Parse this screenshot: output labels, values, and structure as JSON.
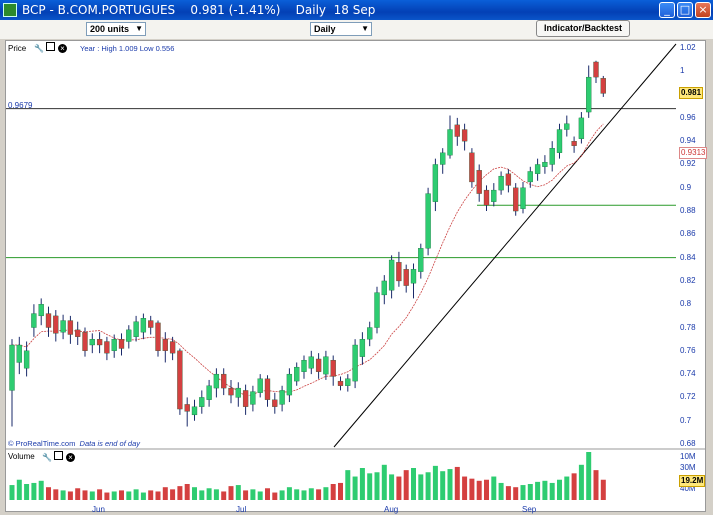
{
  "window": {
    "title": "BCP - B.COM.PORTUGUES    0.981 (-1.41%)    Daily  18 Sep",
    "minimize_glyph": "_",
    "maximize_glyph": "□",
    "close_glyph": "×"
  },
  "toolbar": {
    "units_value": "200 units",
    "period_value": "Daily",
    "indicator_button": "Indicator/Backtest"
  },
  "price_panel": {
    "label": "Price",
    "year_text": "Year : High 1.009 Low 0.556",
    "level_label": "0.9679",
    "y_ticks": [
      "1.02",
      "1",
      "0.98",
      "0.96",
      "0.94",
      "0.92",
      "0.9",
      "0.88",
      "0.86",
      "0.84",
      "0.82",
      "0.8",
      "0.78",
      "0.76",
      "0.74",
      "0.72",
      "0.7",
      "0.68"
    ],
    "last_price": "0.981",
    "ma_value": "0.9313",
    "footer_source": "© ProRealTime.com",
    "footer_note": "Data is end of day"
  },
  "volume_panel": {
    "label": "Volume",
    "y_ticks": [
      "40M",
      "30M",
      "10M"
    ],
    "last_volume": "19.2M"
  },
  "x_axis": {
    "labels": [
      "Jun",
      "Jul",
      "Aug",
      "Sep"
    ]
  },
  "icons": {
    "tools": [
      "wrench-icon",
      "window-icon",
      "close-circle-icon"
    ]
  },
  "colors": {
    "up_candle": "#2ecc71",
    "down_candle": "#d44040",
    "trendline": "#000000",
    "support_line": "#2a9a2a",
    "moving_average": "#c44",
    "axis_text": "#1a3aaa"
  },
  "chart_data": {
    "type": "candlestick",
    "horizontal_levels": [
      0.9679,
      0.885,
      0.84
    ],
    "price_range": [
      0.68,
      1.02
    ],
    "volume_ticks_M": [
      10,
      30,
      40
    ],
    "candles": [
      {
        "o": 0.726,
        "c": 0.765,
        "h": 0.77,
        "l": 0.695
      },
      {
        "o": 0.75,
        "c": 0.765,
        "h": 0.772,
        "l": 0.74
      },
      {
        "o": 0.745,
        "c": 0.76,
        "h": 0.768,
        "l": 0.738
      },
      {
        "o": 0.78,
        "c": 0.792,
        "h": 0.8,
        "l": 0.772
      },
      {
        "o": 0.79,
        "c": 0.8,
        "h": 0.805,
        "l": 0.782
      },
      {
        "o": 0.792,
        "c": 0.78,
        "h": 0.798,
        "l": 0.772
      },
      {
        "o": 0.79,
        "c": 0.775,
        "h": 0.795,
        "l": 0.768
      },
      {
        "o": 0.776,
        "c": 0.786,
        "h": 0.791,
        "l": 0.77
      },
      {
        "o": 0.786,
        "c": 0.774,
        "h": 0.79,
        "l": 0.766
      },
      {
        "o": 0.778,
        "c": 0.772,
        "h": 0.785,
        "l": 0.765
      },
      {
        "o": 0.776,
        "c": 0.76,
        "h": 0.78,
        "l": 0.755
      },
      {
        "o": 0.765,
        "c": 0.77,
        "h": 0.775,
        "l": 0.758
      },
      {
        "o": 0.77,
        "c": 0.765,
        "h": 0.776,
        "l": 0.758
      },
      {
        "o": 0.768,
        "c": 0.758,
        "h": 0.772,
        "l": 0.752
      },
      {
        "o": 0.76,
        "c": 0.77,
        "h": 0.774,
        "l": 0.754
      },
      {
        "o": 0.77,
        "c": 0.762,
        "h": 0.775,
        "l": 0.756
      },
      {
        "o": 0.768,
        "c": 0.778,
        "h": 0.782,
        "l": 0.762
      },
      {
        "o": 0.772,
        "c": 0.785,
        "h": 0.79,
        "l": 0.768
      },
      {
        "o": 0.776,
        "c": 0.788,
        "h": 0.792,
        "l": 0.77
      },
      {
        "o": 0.786,
        "c": 0.78,
        "h": 0.79,
        "l": 0.774
      },
      {
        "o": 0.784,
        "c": 0.76,
        "h": 0.786,
        "l": 0.755
      },
      {
        "o": 0.77,
        "c": 0.76,
        "h": 0.776,
        "l": 0.75
      },
      {
        "o": 0.768,
        "c": 0.758,
        "h": 0.772,
        "l": 0.752
      },
      {
        "o": 0.76,
        "c": 0.71,
        "h": 0.762,
        "l": 0.705
      },
      {
        "o": 0.714,
        "c": 0.708,
        "h": 0.72,
        "l": 0.695
      },
      {
        "o": 0.705,
        "c": 0.712,
        "h": 0.718,
        "l": 0.7
      },
      {
        "o": 0.712,
        "c": 0.72,
        "h": 0.726,
        "l": 0.706
      },
      {
        "o": 0.718,
        "c": 0.73,
        "h": 0.735,
        "l": 0.712
      },
      {
        "o": 0.728,
        "c": 0.74,
        "h": 0.745,
        "l": 0.72
      },
      {
        "o": 0.74,
        "c": 0.728,
        "h": 0.745,
        "l": 0.722
      },
      {
        "o": 0.728,
        "c": 0.722,
        "h": 0.735,
        "l": 0.715
      },
      {
        "o": 0.72,
        "c": 0.728,
        "h": 0.733,
        "l": 0.712
      },
      {
        "o": 0.726,
        "c": 0.712,
        "h": 0.731,
        "l": 0.705
      },
      {
        "o": 0.714,
        "c": 0.725,
        "h": 0.73,
        "l": 0.708
      },
      {
        "o": 0.724,
        "c": 0.736,
        "h": 0.74,
        "l": 0.72
      },
      {
        "o": 0.736,
        "c": 0.718,
        "h": 0.739,
        "l": 0.712
      },
      {
        "o": 0.718,
        "c": 0.712,
        "h": 0.724,
        "l": 0.706
      },
      {
        "o": 0.714,
        "c": 0.726,
        "h": 0.73,
        "l": 0.708
      },
      {
        "o": 0.722,
        "c": 0.74,
        "h": 0.745,
        "l": 0.716
      },
      {
        "o": 0.734,
        "c": 0.746,
        "h": 0.75,
        "l": 0.73
      },
      {
        "o": 0.742,
        "c": 0.752,
        "h": 0.756,
        "l": 0.736
      },
      {
        "o": 0.745,
        "c": 0.755,
        "h": 0.76,
        "l": 0.74
      },
      {
        "o": 0.753,
        "c": 0.742,
        "h": 0.758,
        "l": 0.736
      },
      {
        "o": 0.74,
        "c": 0.755,
        "h": 0.76,
        "l": 0.735
      },
      {
        "o": 0.752,
        "c": 0.738,
        "h": 0.756,
        "l": 0.73
      },
      {
        "o": 0.734,
        "c": 0.73,
        "h": 0.738,
        "l": 0.726
      },
      {
        "o": 0.73,
        "c": 0.736,
        "h": 0.74,
        "l": 0.725
      },
      {
        "o": 0.734,
        "c": 0.765,
        "h": 0.77,
        "l": 0.728
      },
      {
        "o": 0.755,
        "c": 0.77,
        "h": 0.776,
        "l": 0.748
      },
      {
        "o": 0.77,
        "c": 0.78,
        "h": 0.785,
        "l": 0.764
      },
      {
        "o": 0.78,
        "c": 0.81,
        "h": 0.815,
        "l": 0.775
      },
      {
        "o": 0.808,
        "c": 0.82,
        "h": 0.825,
        "l": 0.8
      },
      {
        "o": 0.812,
        "c": 0.838,
        "h": 0.842,
        "l": 0.805
      },
      {
        "o": 0.836,
        "c": 0.82,
        "h": 0.845,
        "l": 0.815
      },
      {
        "o": 0.83,
        "c": 0.816,
        "h": 0.834,
        "l": 0.81
      },
      {
        "o": 0.818,
        "c": 0.83,
        "h": 0.835,
        "l": 0.805
      },
      {
        "o": 0.828,
        "c": 0.848,
        "h": 0.852,
        "l": 0.822
      },
      {
        "o": 0.848,
        "c": 0.895,
        "h": 0.9,
        "l": 0.842
      },
      {
        "o": 0.888,
        "c": 0.92,
        "h": 0.925,
        "l": 0.88
      },
      {
        "o": 0.92,
        "c": 0.93,
        "h": 0.934,
        "l": 0.912
      },
      {
        "o": 0.928,
        "c": 0.95,
        "h": 0.962,
        "l": 0.925
      },
      {
        "o": 0.954,
        "c": 0.944,
        "h": 0.96,
        "l": 0.936
      },
      {
        "o": 0.95,
        "c": 0.94,
        "h": 0.955,
        "l": 0.932
      },
      {
        "o": 0.93,
        "c": 0.905,
        "h": 0.934,
        "l": 0.9
      },
      {
        "o": 0.915,
        "c": 0.895,
        "h": 0.92,
        "l": 0.888
      },
      {
        "o": 0.898,
        "c": 0.885,
        "h": 0.902,
        "l": 0.88
      },
      {
        "o": 0.888,
        "c": 0.898,
        "h": 0.904,
        "l": 0.884
      },
      {
        "o": 0.898,
        "c": 0.91,
        "h": 0.914,
        "l": 0.894
      },
      {
        "o": 0.912,
        "c": 0.902,
        "h": 0.916,
        "l": 0.896
      },
      {
        "o": 0.9,
        "c": 0.88,
        "h": 0.904,
        "l": 0.876
      },
      {
        "o": 0.882,
        "c": 0.9,
        "h": 0.905,
        "l": 0.878
      },
      {
        "o": 0.905,
        "c": 0.914,
        "h": 0.918,
        "l": 0.9
      },
      {
        "o": 0.912,
        "c": 0.92,
        "h": 0.925,
        "l": 0.906
      },
      {
        "o": 0.918,
        "c": 0.922,
        "h": 0.928,
        "l": 0.912
      },
      {
        "o": 0.92,
        "c": 0.934,
        "h": 0.94,
        "l": 0.914
      },
      {
        "o": 0.93,
        "c": 0.95,
        "h": 0.955,
        "l": 0.925
      },
      {
        "o": 0.95,
        "c": 0.955,
        "h": 0.962,
        "l": 0.944
      },
      {
        "o": 0.94,
        "c": 0.936,
        "h": 0.944,
        "l": 0.93
      },
      {
        "o": 0.942,
        "c": 0.96,
        "h": 0.965,
        "l": 0.938
      },
      {
        "o": 0.965,
        "c": 0.995,
        "h": 1.005,
        "l": 0.96
      },
      {
        "o": 1.008,
        "c": 0.995,
        "h": 1.009,
        "l": 0.99
      },
      {
        "o": 0.994,
        "c": 0.981,
        "h": 0.996,
        "l": 0.978
      }
    ],
    "volume_M": [
      14,
      19,
      15,
      16,
      18,
      12,
      10,
      9,
      8,
      11,
      9,
      8,
      10,
      7,
      8,
      9,
      8,
      10,
      7,
      9,
      8,
      12,
      10,
      13,
      15,
      12,
      9,
      11,
      10,
      8,
      13,
      14,
      9,
      10,
      8,
      11,
      7,
      9,
      12,
      10,
      9,
      11,
      10,
      12,
      15,
      16,
      28,
      22,
      30,
      25,
      26,
      33,
      24,
      22,
      28,
      30,
      24,
      26,
      32,
      27,
      29,
      31,
      22,
      20,
      18,
      19,
      22,
      16,
      13,
      12,
      14,
      15,
      17,
      18,
      16,
      19,
      22,
      25,
      33,
      45,
      28,
      19
    ]
  }
}
